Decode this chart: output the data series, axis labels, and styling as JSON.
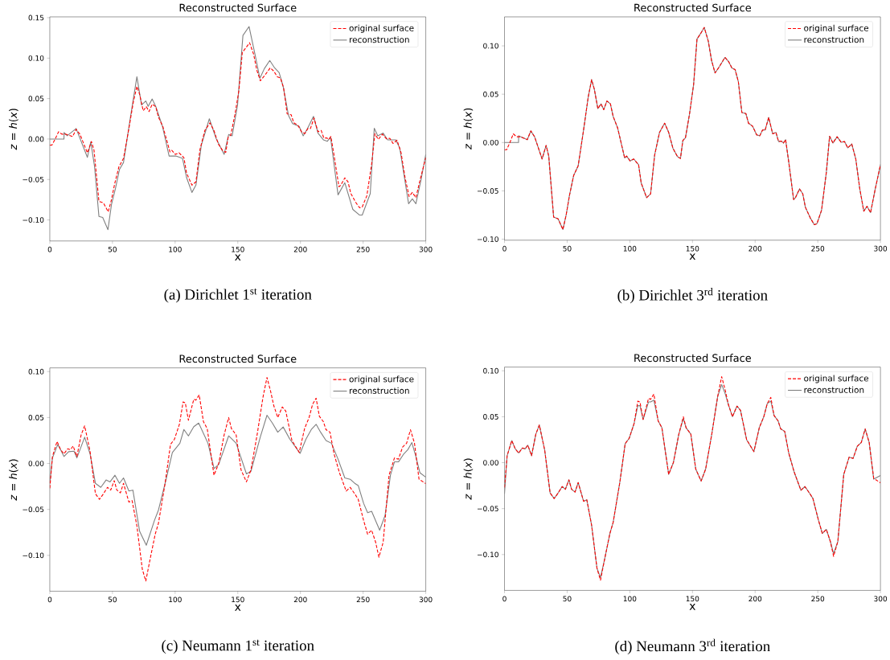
{
  "chart_data": [
    {
      "type": "line",
      "title": "Reconstructed Surface",
      "xlabel": "x",
      "ylabel": "*z* = *h*(*x*)",
      "legend": "top right",
      "xlim": [
        0,
        300
      ],
      "ylim": [
        -0.126,
        0.151
      ],
      "xticks": [
        0,
        50,
        100,
        150,
        200,
        250,
        300
      ],
      "yticks": [
        {
          "value": -0.1,
          "label": "−0.10"
        },
        {
          "value": -0.05,
          "label": "−0.05"
        },
        {
          "value": 0,
          "label": "0.00"
        },
        {
          "value": 0.05,
          "label": "0.05"
        },
        {
          "value": 0.1,
          "label": "0.10"
        },
        {
          "value": 0.15,
          "label": "0.15"
        }
      ],
      "annotations": [
        "(a) Dirichlet 1$^{st}$ iteration"
      ],
      "series": [
        {
          "name": "original surface",
          "color": "#ff0000",
          "line_style": "dashed",
          "x": [
            0,
            1.7,
            4.3,
            7,
            9.6,
            12.8,
            18.2,
            21,
            24,
            30,
            33.2,
            35.3,
            39.2,
            42.8,
            46.6,
            49.2,
            51.8,
            55.2,
            58.8,
            63.1,
            66.8,
            69.5,
            71.7,
            74.5,
            77,
            79.2,
            81.7,
            84.5,
            86.7,
            90.3,
            95.9,
            97.4,
            100.2,
            103.1,
            107,
            109.1,
            113.4,
            116.6,
            119.8,
            123.7,
            127.8,
            131,
            134.4,
            138,
            140.4,
            142.3,
            144.4,
            147.7,
            150.9,
            153.6,
            156.6,
            159.4,
            162.6,
            165.2,
            168,
            171.2,
            175.9,
            178.7,
            181.5,
            184,
            186.6,
            189.4,
            192.6,
            194.7,
            197.9,
            201.2,
            203.7,
            205.9,
            208,
            210.8,
            214,
            216.6,
            218.7,
            220.8,
            222.6,
            224.3,
            226.8,
            230.7,
            232.2,
            235.4,
            238,
            240.1,
            244,
            247.2,
            249.3,
            253,
            256.8,
            259.4,
            262.1,
            265.4,
            268.6,
            271.3,
            273.9,
            277.1,
            280.3,
            283.5,
            286.7,
            289.3,
            292.1,
            295.7,
            300
          ],
          "values": [
            -0.0075,
            -0.0075,
            0,
            0.009,
            0.006,
            0.006,
            0.003,
            0.012,
            0.006,
            -0.017,
            -0.003,
            -0.014,
            -0.077,
            -0.079,
            -0.09,
            -0.075,
            -0.055,
            -0.034,
            -0.024,
            0.013,
            0.047,
            0.065,
            0.055,
            0.035,
            0.04,
            0.034,
            0.043,
            0.04,
            0.027,
            0.015,
            -0.016,
            -0.014,
            -0.019,
            -0.017,
            -0.023,
            -0.042,
            -0.057,
            -0.053,
            -0.013,
            0.0105,
            0.02,
            0.0105,
            -0.006,
            -0.0145,
            -0.0165,
            0.002,
            0.005,
            0.03,
            0.06,
            0.107,
            0.113,
            0.119,
            0.105,
            0.085,
            0.072,
            0.078,
            0.088,
            0.084,
            0.077,
            0.0755,
            0.063,
            0.031,
            0.03,
            0.02,
            0.017,
            0.008,
            0.007,
            0.013,
            0.013,
            0.026,
            0.009,
            0.0105,
            0.001,
            0.0015,
            -0.0005,
            0.003,
            -0.02,
            -0.059,
            -0.057,
            -0.048,
            -0.053,
            -0.067,
            -0.078,
            -0.085,
            -0.084,
            -0.07,
            -0.031,
            0.0065,
            -0.0005,
            0.006,
            0.0003,
            0.001,
            -0.0055,
            -0.0015,
            -0.017,
            -0.048,
            -0.071,
            -0.066,
            -0.0725,
            -0.049,
            -0.023
          ]
        },
        {
          "name": "reconstruction",
          "color": "#808080",
          "line_style": "solid",
          "x": [
            0,
            11.3,
            11.4,
            13.9,
            21,
            30,
            32.7,
            35.7,
            39.2,
            42.2,
            46.4,
            49.2,
            52.4,
            55.6,
            58.8,
            64.2,
            69.5,
            73.2,
            76.6,
            78.5,
            81.7,
            84.5,
            89.9,
            95.2,
            100.6,
            105.9,
            109.1,
            113.4,
            116.6,
            120.9,
            127.3,
            132.7,
            139.1,
            142.7,
            145.5,
            149.8,
            154.1,
            159,
            163.7,
            167.6,
            171.2,
            175.5,
            179.1,
            183,
            186.2,
            190.5,
            193.7,
            199,
            202.2,
            205.4,
            210.4,
            214,
            218.3,
            221.5,
            224,
            230,
            235.4,
            241.8,
            247.2,
            249.3,
            255.7,
            258.9,
            261.7,
            266,
            269.6,
            276,
            279.2,
            286.3,
            289.3,
            292.1,
            296.4,
            300
          ],
          "values": [
            0,
            0,
            0.008,
            0.004,
            0.013,
            -0.0226,
            -0.0037,
            -0.034,
            -0.0956,
            -0.097,
            -0.112,
            -0.081,
            -0.061,
            -0.0375,
            -0.029,
            0.0256,
            0.077,
            0.042,
            0.047,
            0.0405,
            0.0495,
            0.0405,
            0.0156,
            -0.021,
            -0.021,
            -0.024,
            -0.0475,
            -0.066,
            -0.057,
            -0.0076,
            0.025,
            0.0007,
            -0.019,
            0.0056,
            0.004,
            0.042,
            0.128,
            0.139,
            0.105,
            0.075,
            0.087,
            0.097,
            0.0886,
            0.082,
            0.065,
            0.029,
            0.019,
            0.0156,
            0.004,
            0.0123,
            0.028,
            0.0073,
            -0.001,
            -0.0027,
            0.0023,
            -0.069,
            -0.054,
            -0.087,
            -0.094,
            -0.094,
            -0.0674,
            0.0133,
            0.004,
            0.0073,
            -0.001,
            -0.001,
            -0.011,
            -0.08,
            -0.074,
            -0.08,
            -0.049,
            -0.019
          ]
        }
      ]
    },
    {
      "type": "line",
      "title": "Reconstructed Surface",
      "xlabel": "x",
      "ylabel": "*z* = *h*(*x*)",
      "legend": "top right",
      "xlim": [
        0,
        300
      ],
      "ylim": [
        -0.101,
        0.13
      ],
      "xticks": [
        0,
        50,
        100,
        150,
        200,
        250,
        300
      ],
      "yticks": [
        {
          "value": -0.1,
          "label": "−0.10"
        },
        {
          "value": -0.05,
          "label": "−0.05"
        },
        {
          "value": 0,
          "label": "0.00"
        },
        {
          "value": 0.05,
          "label": "0.05"
        },
        {
          "value": 0.1,
          "label": "0.10"
        }
      ],
      "annotations": [
        "(b) Dirichlet 3$^{rd}$ iteration"
      ],
      "series": [
        {
          "name": "original surface",
          "color": "#ff0000",
          "line_style": "dashed",
          "x": [
            0,
            1.7,
            4.3,
            7,
            9.6,
            12.8,
            18.2,
            21,
            24,
            30,
            33.2,
            35.3,
            39.2,
            42.8,
            46.6,
            49.2,
            51.8,
            55.2,
            58.8,
            63.1,
            66.8,
            69.5,
            71.7,
            74.5,
            77,
            79.2,
            81.7,
            84.5,
            86.7,
            90.3,
            95.9,
            97.4,
            100.2,
            103.1,
            107,
            109.1,
            113.4,
            116.6,
            119.8,
            123.7,
            127.8,
            131,
            134.4,
            138,
            140.4,
            142.3,
            144.4,
            147.7,
            150.9,
            153.6,
            156.6,
            159.4,
            162.6,
            165.2,
            168,
            171.2,
            175.9,
            178.7,
            181.5,
            184,
            186.6,
            189.4,
            192.6,
            194.7,
            197.9,
            201.2,
            203.7,
            205.9,
            208,
            210.8,
            214,
            216.6,
            218.7,
            220.8,
            222.6,
            224.3,
            226.8,
            230.7,
            232.2,
            235.4,
            238,
            240.1,
            244,
            247.2,
            249.3,
            253,
            256.8,
            259.4,
            262.1,
            265.4,
            268.6,
            271.3,
            273.9,
            277.1,
            280.3,
            283.5,
            286.7,
            289.3,
            292.1,
            295.7,
            300
          ],
          "values": [
            -0.0075,
            -0.0075,
            0,
            0.009,
            0.006,
            0.006,
            0.003,
            0.012,
            0.006,
            -0.017,
            -0.003,
            -0.014,
            -0.077,
            -0.079,
            -0.09,
            -0.075,
            -0.055,
            -0.034,
            -0.024,
            0.013,
            0.047,
            0.065,
            0.055,
            0.035,
            0.04,
            0.034,
            0.043,
            0.04,
            0.027,
            0.015,
            -0.016,
            -0.014,
            -0.019,
            -0.017,
            -0.023,
            -0.042,
            -0.057,
            -0.053,
            -0.013,
            0.0105,
            0.02,
            0.0105,
            -0.006,
            -0.0145,
            -0.0165,
            0.002,
            0.005,
            0.03,
            0.06,
            0.107,
            0.113,
            0.119,
            0.105,
            0.085,
            0.072,
            0.078,
            0.088,
            0.084,
            0.077,
            0.0755,
            0.063,
            0.031,
            0.03,
            0.02,
            0.017,
            0.008,
            0.007,
            0.013,
            0.013,
            0.026,
            0.009,
            0.0105,
            0.001,
            0.0015,
            -0.0005,
            0.003,
            -0.02,
            -0.059,
            -0.057,
            -0.048,
            -0.053,
            -0.067,
            -0.078,
            -0.085,
            -0.084,
            -0.07,
            -0.031,
            0.0065,
            -0.0005,
            0.006,
            0.0003,
            0.001,
            -0.0055,
            -0.0015,
            -0.017,
            -0.048,
            -0.071,
            -0.066,
            -0.0725,
            -0.049,
            -0.023
          ]
        },
        {
          "name": "reconstruction",
          "color": "#808080",
          "line_style": "solid",
          "x": [
            0,
            11.2,
            11.3,
            12.8,
            18.2,
            21,
            24,
            30,
            33.2,
            35.3,
            39.2,
            42.8,
            46.6,
            49.2,
            51.8,
            55.2,
            58.8,
            63.1,
            66.8,
            69.5,
            71.7,
            74.5,
            77,
            79.2,
            81.7,
            84.5,
            86.7,
            90.3,
            95.9,
            97.4,
            100.2,
            103.1,
            107,
            109.1,
            113.4,
            116.6,
            119.8,
            123.7,
            127.8,
            131,
            134.4,
            138,
            140.4,
            142.3,
            144.4,
            147.7,
            150.9,
            153.6,
            156.6,
            159.4,
            162.6,
            165.2,
            168,
            171.2,
            175.9,
            178.7,
            181.5,
            184,
            186.6,
            189.4,
            192.6,
            194.7,
            197.9,
            201.2,
            203.7,
            205.9,
            208,
            210.8,
            214,
            216.6,
            218.7,
            220.8,
            222.6,
            224.3,
            226.8,
            230.7,
            232.2,
            235.4,
            238,
            240.1,
            244,
            247.2,
            249.3,
            253,
            256.8,
            259.4,
            262.1,
            265.4,
            268.6,
            271.3,
            273.9,
            277.1,
            280.3,
            283.5,
            286.7,
            289.3,
            292.1,
            295.7,
            300
          ],
          "values": [
            0,
            0,
            0.007,
            0.006,
            0.003,
            0.012,
            0.006,
            -0.017,
            -0.003,
            -0.014,
            -0.077,
            -0.079,
            -0.09,
            -0.075,
            -0.055,
            -0.034,
            -0.024,
            0.013,
            0.047,
            0.065,
            0.055,
            0.035,
            0.04,
            0.034,
            0.043,
            0.04,
            0.027,
            0.015,
            -0.016,
            -0.014,
            -0.019,
            -0.017,
            -0.023,
            -0.042,
            -0.057,
            -0.053,
            -0.013,
            0.0105,
            0.02,
            0.0105,
            -0.006,
            -0.0145,
            -0.0165,
            0.002,
            0.005,
            0.03,
            0.06,
            0.107,
            0.113,
            0.119,
            0.105,
            0.085,
            0.072,
            0.078,
            0.088,
            0.084,
            0.077,
            0.0755,
            0.063,
            0.031,
            0.03,
            0.02,
            0.017,
            0.008,
            0.007,
            0.013,
            0.013,
            0.026,
            0.009,
            0.0105,
            0.001,
            0.0015,
            -0.0005,
            0.003,
            -0.02,
            -0.059,
            -0.057,
            -0.048,
            -0.053,
            -0.067,
            -0.078,
            -0.085,
            -0.084,
            -0.07,
            -0.031,
            0.0065,
            -0.0005,
            0.006,
            0.0003,
            0.001,
            -0.0055,
            -0.0015,
            -0.017,
            -0.048,
            -0.071,
            -0.066,
            -0.0725,
            -0.049,
            -0.023
          ]
        }
      ]
    },
    {
      "type": "line",
      "title": "Reconstructed Surface",
      "xlabel": "x",
      "ylabel": "*z* = *h*(*x*)",
      "legend": "top right",
      "xlim": [
        0,
        300
      ],
      "ylim": [
        -0.139,
        0.104
      ],
      "xticks": [
        0,
        50,
        100,
        150,
        200,
        250,
        300
      ],
      "yticks": [
        {
          "value": -0.1,
          "label": "−0.10"
        },
        {
          "value": -0.05,
          "label": "−0.05"
        },
        {
          "value": 0,
          "label": "0.00"
        },
        {
          "value": 0.05,
          "label": "0.05"
        },
        {
          "value": 0.1,
          "label": "0.10"
        }
      ],
      "annotations": [
        "(c) Neumann 1$^{st}$ iteration"
      ],
      "series": [
        {
          "name": "original surface",
          "color": "#ff0000",
          "line_style": "dashed",
          "x": [
            0,
            2.1,
            5.8,
            8.6,
            11.3,
            14.3,
            16.5,
            18.6,
            21.6,
            25,
            27.8,
            32.1,
            36.4,
            39.6,
            42.8,
            46,
            48.6,
            51.4,
            53.5,
            56.3,
            58.8,
            63.1,
            65.7,
            69.5,
            73.8,
            76.6,
            80.2,
            84.1,
            86.7,
            92,
            96.3,
            99.5,
            103.4,
            106.4,
            108.1,
            110.6,
            114.9,
            116.6,
            119.2,
            122.6,
            125.6,
            131,
            134.8,
            139.1,
            142.7,
            144.9,
            148.7,
            152.6,
            156.9,
            160.5,
            165.4,
            170.1,
            173.3,
            176.1,
            178.7,
            181.9,
            185.5,
            188.3,
            193.2,
            199,
            203.3,
            206.9,
            209.7,
            212.5,
            215.1,
            218.3,
            220.4,
            223.6,
            226.8,
            231.1,
            236.5,
            239.7,
            243.3,
            246.1,
            250.4,
            253.6,
            256.8,
            260,
            262.6,
            266,
            270.7,
            275,
            278.2,
            281.5,
            284.7,
            287.8,
            291,
            294.6,
            300
          ],
          "values": [
            -0.027,
            0.0076,
            0.024,
            0.015,
            0.0105,
            0.016,
            0.015,
            0.019,
            0.0076,
            0.031,
            0.041,
            0.0134,
            -0.033,
            -0.039,
            -0.033,
            -0.026,
            -0.029,
            -0.0187,
            -0.029,
            -0.032,
            -0.0216,
            -0.042,
            -0.0405,
            -0.068,
            -0.115,
            -0.128,
            -0.103,
            -0.077,
            -0.065,
            -0.0216,
            0.0207,
            0.0265,
            0.0426,
            0.067,
            0.066,
            0.047,
            0.07,
            0.069,
            0.0746,
            0.0455,
            0.038,
            -0.0128,
            0.0003,
            0.031,
            0.05,
            0.038,
            0.031,
            -0.007,
            -0.02,
            -0.007,
            0.031,
            0.072,
            0.0936,
            0.079,
            0.063,
            0.05,
            0.0615,
            0.057,
            0.025,
            0.012,
            0.038,
            0.05,
            0.0644,
            0.071,
            0.0513,
            0.0455,
            0.0367,
            0.034,
            0.0105,
            -0.01,
            -0.03,
            -0.026,
            -0.033,
            -0.039,
            -0.062,
            -0.077,
            -0.0726,
            -0.0857,
            -0.102,
            -0.0857,
            -0.0128,
            0.006,
            0.0047,
            0.0178,
            0.022,
            0.0367,
            0.022,
            -0.017,
            -0.022
          ]
        },
        {
          "name": "reconstruction",
          "color": "#808080",
          "line_style": "solid",
          "x": [
            0,
            2.1,
            6.4,
            11.3,
            15,
            19.3,
            21.6,
            27.8,
            32.1,
            36.4,
            40.7,
            44.9,
            48.1,
            52,
            55.6,
            58.8,
            63.1,
            66.3,
            71.7,
            77,
            83.5,
            86.7,
            93.1,
            97.8,
            103.8,
            107,
            110.6,
            114.9,
            118.8,
            126.2,
            131.1,
            134.8,
            142.7,
            148.7,
            156.9,
            160.5,
            168,
            173.3,
            177.6,
            181.9,
            186.2,
            191.5,
            199.7,
            204.4,
            208.7,
            212.5,
            216.1,
            220.4,
            224.7,
            230,
            235.4,
            239.7,
            243.3,
            246.1,
            250.4,
            253.6,
            256.8,
            263.2,
            267.5,
            271.8,
            275,
            278.2,
            282.5,
            285.7,
            288.9,
            292.1,
            295.3,
            300
          ],
          "values": [
            -0.0216,
            0.006,
            0.0207,
            0.0076,
            0.0128,
            0.0134,
            0.006,
            0.0286,
            0.0105,
            -0.0216,
            -0.026,
            -0.018,
            -0.02,
            -0.0128,
            -0.0216,
            -0.0157,
            -0.03,
            -0.029,
            -0.074,
            -0.089,
            -0.062,
            -0.0507,
            -0.0157,
            0.012,
            0.022,
            0.037,
            0.03,
            0.04,
            0.044,
            0.022,
            -0.0055,
            -0.001,
            0.03,
            0.022,
            -0.0114,
            -0.0085,
            0.029,
            0.0525,
            0.044,
            0.034,
            0.0397,
            0.0265,
            0.011,
            0.0265,
            0.037,
            0.0426,
            0.034,
            0.025,
            0.022,
            0.0047,
            -0.0157,
            -0.0172,
            -0.0216,
            -0.024,
            -0.0434,
            -0.0536,
            -0.052,
            -0.0726,
            -0.0566,
            -0.0128,
            0.0017,
            0.0017,
            0.0105,
            0.015,
            0.0227,
            0.0076,
            -0.01,
            -0.015
          ]
        }
      ]
    },
    {
      "type": "line",
      "title": "Reconstructed Surface",
      "xlabel": "x",
      "ylabel": "*z* = *h*(*x*)",
      "legend": "top right",
      "xlim": [
        0,
        300
      ],
      "ylim": [
        -0.139,
        0.104
      ],
      "xticks": [
        0,
        50,
        100,
        150,
        200,
        250,
        300
      ],
      "yticks": [
        {
          "value": -0.1,
          "label": "−0.10"
        },
        {
          "value": -0.05,
          "label": "−0.05"
        },
        {
          "value": 0,
          "label": "0.00"
        },
        {
          "value": 0.05,
          "label": "0.05"
        },
        {
          "value": 0.1,
          "label": "0.10"
        }
      ],
      "annotations": [
        "(d) Neumann 3$^{rd}$ iteration"
      ],
      "series": [
        {
          "name": "original surface",
          "color": "#ff0000",
          "line_style": "dashed",
          "x": [
            0,
            2.1,
            5.8,
            8.6,
            11.3,
            14.3,
            16.5,
            18.6,
            21.6,
            25,
            27.8,
            32.1,
            36.4,
            39.6,
            42.8,
            46,
            48.6,
            51.4,
            53.5,
            56.3,
            58.8,
            63.1,
            65.7,
            69.5,
            73.8,
            76.6,
            80.2,
            84.1,
            86.7,
            92,
            96.3,
            99.5,
            103.4,
            106.4,
            108.1,
            110.6,
            114.9,
            116.6,
            119.2,
            122.6,
            125.6,
            131,
            134.8,
            139.1,
            142.7,
            144.9,
            148.7,
            152.6,
            156.9,
            160.5,
            165.4,
            170.1,
            173.3,
            176.1,
            178.7,
            181.9,
            185.5,
            188.3,
            193.2,
            199,
            203.3,
            206.9,
            209.7,
            212.5,
            215.1,
            218.3,
            220.4,
            223.6,
            226.8,
            231.1,
            236.5,
            239.7,
            243.3,
            246.1,
            250.4,
            253.6,
            256.8,
            260,
            262.6,
            266,
            270.7,
            275,
            278.2,
            281.5,
            284.7,
            287.8,
            291,
            294.6,
            300
          ],
          "values": [
            -0.027,
            0.0076,
            0.024,
            0.015,
            0.0105,
            0.016,
            0.015,
            0.019,
            0.0076,
            0.031,
            0.041,
            0.0134,
            -0.033,
            -0.039,
            -0.033,
            -0.026,
            -0.029,
            -0.0187,
            -0.029,
            -0.032,
            -0.0216,
            -0.042,
            -0.0405,
            -0.068,
            -0.115,
            -0.128,
            -0.103,
            -0.077,
            -0.065,
            -0.0216,
            0.0207,
            0.0265,
            0.0426,
            0.067,
            0.066,
            0.047,
            0.07,
            0.069,
            0.0746,
            0.0455,
            0.038,
            -0.0128,
            0.0003,
            0.031,
            0.05,
            0.038,
            0.031,
            -0.007,
            -0.02,
            -0.007,
            0.031,
            0.072,
            0.0936,
            0.079,
            0.063,
            0.05,
            0.0615,
            0.057,
            0.025,
            0.012,
            0.038,
            0.05,
            0.0644,
            0.071,
            0.0513,
            0.0455,
            0.0367,
            0.034,
            0.0105,
            -0.01,
            -0.03,
            -0.026,
            -0.033,
            -0.039,
            -0.062,
            -0.077,
            -0.0726,
            -0.0857,
            -0.102,
            -0.0857,
            -0.0128,
            0.006,
            0.0047,
            0.0178,
            0.022,
            0.0367,
            0.022,
            -0.017,
            -0.022
          ]
        },
        {
          "name": "reconstruction",
          "color": "#808080",
          "line_style": "solid",
          "x": [
            0,
            2.1,
            5.8,
            8.6,
            11.3,
            14.3,
            16.5,
            18.6,
            21.6,
            25,
            27.8,
            32.1,
            36.4,
            39.6,
            42.8,
            46,
            48.6,
            51.4,
            53.5,
            56.3,
            58.8,
            63.1,
            65.7,
            69.5,
            73.8,
            76.6,
            80.2,
            84.1,
            86.7,
            92,
            96.3,
            99.5,
            103.4,
            106.4,
            108.1,
            110.6,
            114.9,
            116.6,
            119.2,
            122.6,
            125.6,
            131,
            134.8,
            139.1,
            142.7,
            144.9,
            148.7,
            152.6,
            156.9,
            160.5,
            165.4,
            170.1,
            173.3,
            176.1,
            178.7,
            181.9,
            185.5,
            188.3,
            193.2,
            199,
            203.3,
            206.9,
            209.7,
            212.5,
            215.1,
            218.3,
            220.4,
            223.6,
            226.8,
            231.1,
            236.5,
            239.7,
            243.3,
            246.1,
            250.4,
            253.6,
            256.8,
            260,
            262.6,
            266,
            270.7,
            275,
            278.2,
            281.5,
            284.7,
            287.8,
            291,
            294.6,
            300
          ],
          "values": [
            -0.034,
            0.0076,
            0.024,
            0.015,
            0.0105,
            0.016,
            0.015,
            0.019,
            0.0076,
            0.031,
            0.041,
            0.0134,
            -0.033,
            -0.039,
            -0.033,
            -0.026,
            -0.029,
            -0.0187,
            -0.029,
            -0.032,
            -0.0216,
            -0.042,
            -0.0405,
            -0.068,
            -0.115,
            -0.125,
            -0.103,
            -0.077,
            -0.065,
            -0.0216,
            0.0207,
            0.0265,
            0.0426,
            0.062,
            0.062,
            0.047,
            0.066,
            0.066,
            0.068,
            0.0455,
            0.038,
            -0.0128,
            0.0003,
            0.031,
            0.048,
            0.038,
            0.031,
            -0.007,
            -0.02,
            -0.007,
            0.031,
            0.072,
            0.085,
            0.075,
            0.063,
            0.05,
            0.0615,
            0.057,
            0.025,
            0.012,
            0.038,
            0.05,
            0.0644,
            0.067,
            0.0513,
            0.0455,
            0.0367,
            0.034,
            0.0105,
            -0.01,
            -0.03,
            -0.026,
            -0.033,
            -0.039,
            -0.062,
            -0.077,
            -0.0726,
            -0.0857,
            -0.099,
            -0.0857,
            -0.0128,
            0.006,
            0.0047,
            0.0178,
            0.022,
            0.0367,
            0.022,
            -0.018,
            -0.014
          ]
        }
      ]
    }
  ]
}
